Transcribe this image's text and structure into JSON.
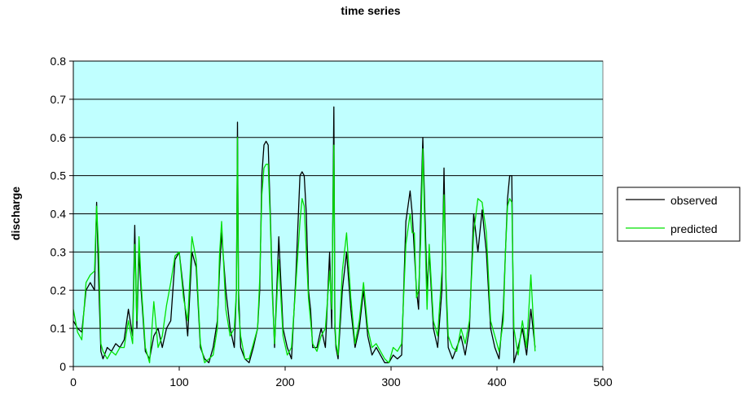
{
  "chart_data": {
    "type": "line",
    "title": "time series",
    "xlabel": "",
    "ylabel": "discharge",
    "xlim": [
      0,
      500
    ],
    "ylim": [
      0,
      0.8
    ],
    "x_ticks": [
      "0",
      "100",
      "200",
      "300",
      "400",
      "500"
    ],
    "y_ticks": [
      "0",
      "0.1",
      "0.2",
      "0.3",
      "0.4",
      "0.5",
      "0.6",
      "0.7",
      "0.8"
    ],
    "grid": "horizontal",
    "legend_position": "right",
    "plot_background": "#c0ffff",
    "series": [
      {
        "name": "observed",
        "color": "#000000",
        "x": [
          0,
          4,
          8,
          12,
          16,
          20,
          22,
          24,
          26,
          28,
          32,
          36,
          40,
          44,
          48,
          52,
          56,
          58,
          60,
          62,
          64,
          68,
          72,
          76,
          80,
          84,
          88,
          92,
          96,
          100,
          104,
          108,
          112,
          116,
          120,
          124,
          128,
          132,
          136,
          138,
          140,
          144,
          148,
          152,
          154,
          155,
          156,
          158,
          162,
          166,
          170,
          174,
          176,
          178,
          180,
          182,
          184,
          186,
          188,
          190,
          194,
          198,
          202,
          206,
          210,
          214,
          216,
          218,
          220,
          222,
          224,
          226,
          230,
          234,
          238,
          242,
          244,
          246,
          247,
          248,
          250,
          254,
          258,
          262,
          266,
          270,
          274,
          278,
          282,
          286,
          290,
          294,
          298,
          302,
          306,
          310,
          314,
          318,
          320,
          322,
          324,
          326,
          328,
          330,
          332,
          334,
          336,
          340,
          344,
          348,
          350,
          352,
          354,
          358,
          362,
          366,
          370,
          374,
          378,
          382,
          386,
          390,
          394,
          398,
          402,
          406,
          408,
          410,
          412,
          414,
          416,
          420,
          424,
          428,
          432,
          436
        ],
        "y": [
          0.12,
          0.1,
          0.09,
          0.2,
          0.22,
          0.2,
          0.43,
          0.22,
          0.04,
          0.02,
          0.05,
          0.04,
          0.06,
          0.05,
          0.07,
          0.15,
          0.08,
          0.37,
          0.1,
          0.3,
          0.2,
          0.04,
          0.02,
          0.08,
          0.1,
          0.05,
          0.1,
          0.12,
          0.28,
          0.3,
          0.2,
          0.08,
          0.3,
          0.26,
          0.05,
          0.02,
          0.01,
          0.05,
          0.12,
          0.25,
          0.35,
          0.2,
          0.1,
          0.05,
          0.2,
          0.64,
          0.2,
          0.05,
          0.02,
          0.01,
          0.05,
          0.1,
          0.2,
          0.5,
          0.58,
          0.59,
          0.58,
          0.4,
          0.2,
          0.05,
          0.34,
          0.1,
          0.05,
          0.02,
          0.23,
          0.5,
          0.51,
          0.5,
          0.4,
          0.2,
          0.15,
          0.05,
          0.05,
          0.1,
          0.05,
          0.3,
          0.1,
          0.68,
          0.1,
          0.05,
          0.02,
          0.2,
          0.3,
          0.15,
          0.05,
          0.1,
          0.2,
          0.08,
          0.03,
          0.05,
          0.03,
          0.01,
          0.01,
          0.03,
          0.02,
          0.03,
          0.38,
          0.46,
          0.4,
          0.3,
          0.2,
          0.15,
          0.4,
          0.6,
          0.4,
          0.2,
          0.3,
          0.1,
          0.05,
          0.2,
          0.52,
          0.2,
          0.05,
          0.02,
          0.05,
          0.08,
          0.03,
          0.1,
          0.4,
          0.3,
          0.41,
          0.3,
          0.1,
          0.05,
          0.02,
          0.15,
          0.3,
          0.44,
          0.5,
          0.5,
          0.01,
          0.05,
          0.1,
          0.03,
          0.15,
          0.05
        ]
      },
      {
        "name": "predicted",
        "color": "#00e000",
        "x": [
          0,
          4,
          8,
          12,
          16,
          20,
          22,
          24,
          26,
          28,
          32,
          36,
          40,
          44,
          48,
          52,
          56,
          58,
          60,
          62,
          64,
          68,
          72,
          76,
          80,
          84,
          88,
          92,
          96,
          100,
          104,
          108,
          112,
          116,
          120,
          124,
          128,
          132,
          136,
          138,
          140,
          144,
          148,
          152,
          154,
          155,
          156,
          158,
          162,
          166,
          170,
          174,
          176,
          178,
          180,
          182,
          184,
          186,
          188,
          190,
          194,
          198,
          202,
          206,
          210,
          214,
          216,
          218,
          220,
          222,
          224,
          226,
          230,
          234,
          238,
          242,
          244,
          246,
          247,
          248,
          250,
          254,
          258,
          262,
          266,
          270,
          274,
          278,
          282,
          286,
          290,
          294,
          298,
          302,
          306,
          310,
          314,
          318,
          320,
          322,
          324,
          326,
          328,
          330,
          332,
          334,
          336,
          340,
          344,
          348,
          350,
          352,
          354,
          358,
          362,
          366,
          370,
          374,
          378,
          382,
          386,
          390,
          394,
          398,
          402,
          406,
          408,
          410,
          412,
          414,
          416,
          420,
          424,
          428,
          432,
          436
        ],
        "y": [
          0.15,
          0.09,
          0.07,
          0.22,
          0.24,
          0.25,
          0.42,
          0.3,
          0.06,
          0.04,
          0.02,
          0.04,
          0.03,
          0.05,
          0.05,
          0.12,
          0.06,
          0.32,
          0.12,
          0.34,
          0.22,
          0.05,
          0.01,
          0.17,
          0.05,
          0.08,
          0.16,
          0.22,
          0.29,
          0.3,
          0.18,
          0.12,
          0.34,
          0.28,
          0.06,
          0.01,
          0.02,
          0.03,
          0.1,
          0.29,
          0.38,
          0.15,
          0.08,
          0.1,
          0.2,
          0.6,
          0.15,
          0.08,
          0.02,
          0.02,
          0.06,
          0.1,
          0.23,
          0.45,
          0.52,
          0.53,
          0.53,
          0.38,
          0.18,
          0.06,
          0.28,
          0.08,
          0.03,
          0.05,
          0.21,
          0.38,
          0.44,
          0.42,
          0.3,
          0.18,
          0.12,
          0.06,
          0.04,
          0.08,
          0.1,
          0.25,
          0.15,
          0.58,
          0.12,
          0.06,
          0.03,
          0.25,
          0.35,
          0.18,
          0.06,
          0.12,
          0.22,
          0.1,
          0.05,
          0.06,
          0.04,
          0.02,
          0.01,
          0.05,
          0.04,
          0.06,
          0.32,
          0.4,
          0.35,
          0.35,
          0.18,
          0.2,
          0.33,
          0.57,
          0.35,
          0.15,
          0.32,
          0.12,
          0.08,
          0.25,
          0.45,
          0.22,
          0.08,
          0.05,
          0.04,
          0.1,
          0.06,
          0.12,
          0.35,
          0.44,
          0.43,
          0.35,
          0.12,
          0.08,
          0.04,
          0.12,
          0.3,
          0.42,
          0.44,
          0.43,
          0.1,
          0.03,
          0.12,
          0.05,
          0.24,
          0.04
        ]
      }
    ]
  }
}
